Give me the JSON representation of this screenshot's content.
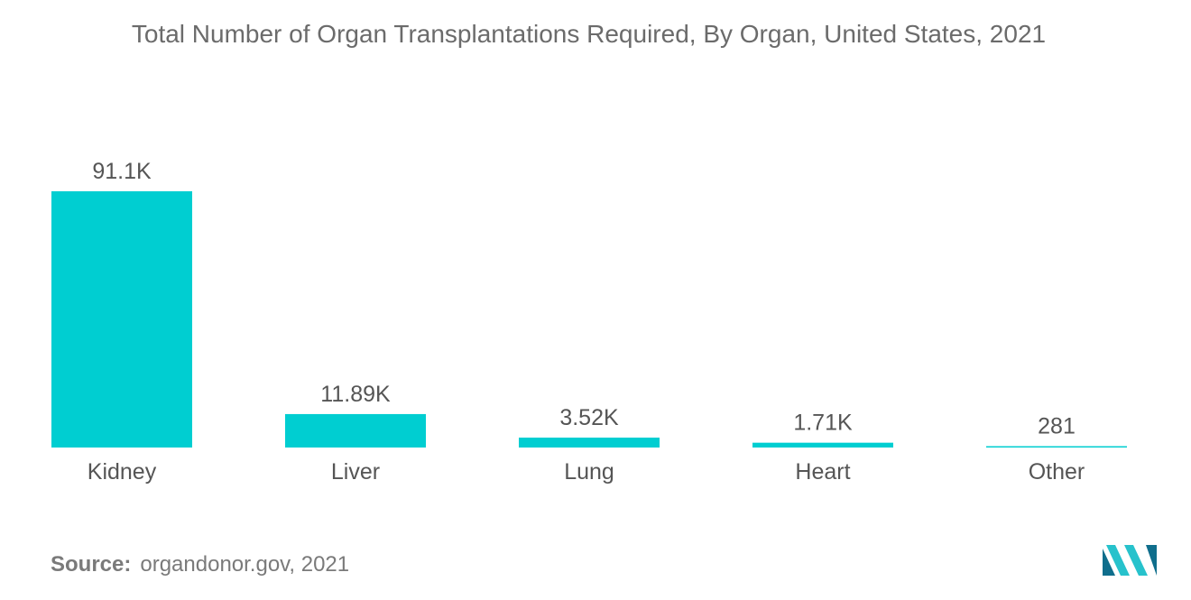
{
  "chart_data": {
    "type": "bar",
    "title": "Total Number of Organ Transplantations Required, By Organ, United States, 2021",
    "categories": [
      "Kidney",
      "Liver",
      "Lung",
      "Heart",
      "Other"
    ],
    "values": [
      91100,
      11890,
      3520,
      1710,
      281
    ],
    "value_labels": [
      "91.1K",
      "11.89K",
      "3.52K",
      "1.71K",
      "281"
    ],
    "xlabel": "",
    "ylabel": "",
    "ylim": [
      0,
      91100
    ],
    "grid": false,
    "bar_color": "#00CED1"
  },
  "source": {
    "label": "Source:",
    "text": "organdonor.gov, 2021"
  },
  "colors": {
    "title": "#6b6b6b",
    "labels": "#555555",
    "logo_dark": "#0f6e8c",
    "logo_light": "#27c2cc"
  },
  "logo": {
    "icon": "brand-logo-icon"
  }
}
